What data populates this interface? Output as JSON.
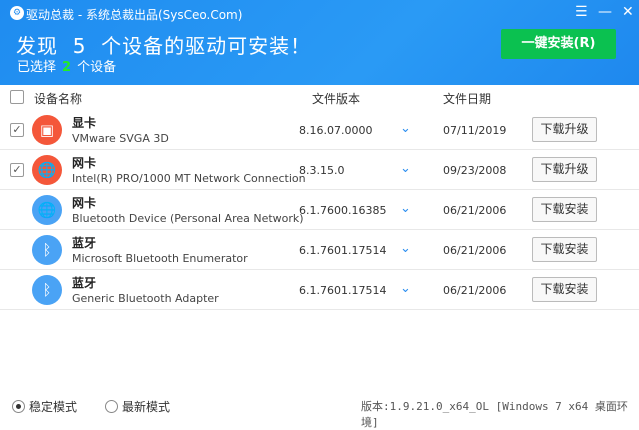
{
  "window": {
    "title": "驱动总裁 - 系统总裁出品(SysCeo.Com)",
    "menu_icon": "menu-icon",
    "minimize_icon": "minimize-icon",
    "close_icon": "close-icon"
  },
  "header": {
    "headline_pre": "发现",
    "count": "5",
    "headline_post": "个设备的驱动可安装！",
    "selected_pre": "已选择",
    "selected_count": "2",
    "selected_post": "个设备",
    "install_all": "一键安装(R)"
  },
  "columns": {
    "name": "设备名称",
    "version": "文件版本",
    "date": "文件日期"
  },
  "rows": [
    {
      "checked": true,
      "category": "显卡",
      "device": "VMware SVGA 3D",
      "version": "8.16.07.0000",
      "date": "07/11/2019",
      "action": "下载升级",
      "icon": "monitor-icon",
      "color": "#f4573a"
    },
    {
      "checked": true,
      "category": "网卡",
      "device": "Intel(R) PRO/1000 MT Network Connection",
      "version": "8.3.15.0",
      "date": "09/23/2008",
      "action": "下载升级",
      "icon": "globe-icon",
      "color": "#f4573a"
    },
    {
      "checked": false,
      "category": "网卡",
      "device": "Bluetooth Device (Personal Area Network)",
      "version": "6.1.7600.16385",
      "date": "06/21/2006",
      "action": "下载安装",
      "icon": "globe-icon",
      "color": "#4aa3f5"
    },
    {
      "checked": false,
      "category": "蓝牙",
      "device": "Microsoft Bluetooth Enumerator",
      "version": "6.1.7601.17514",
      "date": "06/21/2006",
      "action": "下载安装",
      "icon": "bluetooth-icon",
      "color": "#4aa3f5"
    },
    {
      "checked": false,
      "category": "蓝牙",
      "device": "Generic Bluetooth Adapter",
      "version": "6.1.7601.17514",
      "date": "06/21/2006",
      "action": "下载安装",
      "icon": "bluetooth-icon",
      "color": "#4aa3f5"
    }
  ],
  "footer": {
    "mode_stable": "稳定模式",
    "mode_latest": "最新模式",
    "selected_mode": "稳定模式",
    "version": "版本:1.9.21.0_x64_OL [Windows 7 x64 桌面环境]"
  }
}
